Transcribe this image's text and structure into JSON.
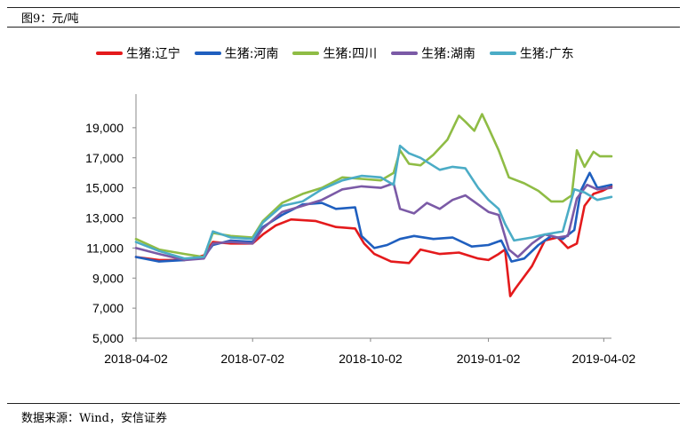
{
  "caption": "图9：元/吨",
  "source": "数据来源：Wind，安信证券",
  "chart_data": {
    "type": "line",
    "ylim": [
      5000,
      21000
    ],
    "yticks": [
      "5,000",
      "7,000",
      "9,000",
      "11,000",
      "13,000",
      "15,000",
      "17,000",
      "19,000"
    ],
    "ytick_values": [
      5000,
      7000,
      9000,
      11000,
      13000,
      15000,
      17000,
      19000
    ],
    "xticks": [
      "2018-04-02",
      "2018-07-02",
      "2018-10-02",
      "2019-01-02",
      "2019-04-02"
    ],
    "x_range": [
      "2018-04-02",
      "2019-04-08"
    ],
    "grid": false,
    "legend_position": "top",
    "series": [
      {
        "name": "生猪:辽宁",
        "color": "#e41a1c",
        "points": [
          [
            "2018-04-02",
            10400
          ],
          [
            "2018-04-20",
            10200
          ],
          [
            "2018-05-10",
            10200
          ],
          [
            "2018-05-25",
            10500
          ],
          [
            "2018-06-01",
            11400
          ],
          [
            "2018-06-15",
            11300
          ],
          [
            "2018-07-02",
            11300
          ],
          [
            "2018-07-10",
            11900
          ],
          [
            "2018-07-20",
            12500
          ],
          [
            "2018-08-01",
            12900
          ],
          [
            "2018-08-20",
            12800
          ],
          [
            "2018-09-05",
            12400
          ],
          [
            "2018-09-20",
            12300
          ],
          [
            "2018-09-27",
            11300
          ],
          [
            "2018-10-05",
            10600
          ],
          [
            "2018-10-18",
            10100
          ],
          [
            "2018-11-01",
            10000
          ],
          [
            "2018-11-10",
            10900
          ],
          [
            "2018-11-25",
            10600
          ],
          [
            "2018-12-10",
            10700
          ],
          [
            "2018-12-25",
            10300
          ],
          [
            "2019-01-02",
            10200
          ],
          [
            "2019-01-10",
            10600
          ],
          [
            "2019-01-15",
            10900
          ],
          [
            "2019-01-19",
            7800
          ],
          [
            "2019-01-23",
            8300
          ],
          [
            "2019-02-05",
            9800
          ],
          [
            "2019-02-15",
            11500
          ],
          [
            "2019-02-25",
            11700
          ],
          [
            "2019-03-05",
            11000
          ],
          [
            "2019-03-12",
            11300
          ],
          [
            "2019-03-18",
            13800
          ],
          [
            "2019-03-25",
            14600
          ],
          [
            "2019-04-01",
            14800
          ],
          [
            "2019-04-08",
            15100
          ]
        ]
      },
      {
        "name": "生猪:河南",
        "color": "#1f5fbf",
        "points": [
          [
            "2018-04-02",
            10400
          ],
          [
            "2018-04-20",
            10100
          ],
          [
            "2018-05-10",
            10200
          ],
          [
            "2018-05-25",
            10400
          ],
          [
            "2018-06-01",
            11200
          ],
          [
            "2018-06-15",
            11500
          ],
          [
            "2018-07-02",
            11400
          ],
          [
            "2018-07-10",
            12400
          ],
          [
            "2018-07-25",
            13200
          ],
          [
            "2018-08-10",
            13900
          ],
          [
            "2018-08-25",
            14000
          ],
          [
            "2018-09-05",
            13600
          ],
          [
            "2018-09-20",
            13700
          ],
          [
            "2018-09-25",
            11800
          ],
          [
            "2018-10-05",
            11000
          ],
          [
            "2018-10-15",
            11200
          ],
          [
            "2018-10-25",
            11600
          ],
          [
            "2018-11-05",
            11800
          ],
          [
            "2018-11-20",
            11600
          ],
          [
            "2018-12-05",
            11700
          ],
          [
            "2018-12-20",
            11100
          ],
          [
            "2019-01-02",
            11200
          ],
          [
            "2019-01-12",
            11500
          ],
          [
            "2019-01-20",
            10100
          ],
          [
            "2019-01-30",
            10300
          ],
          [
            "2019-02-10",
            11200
          ],
          [
            "2019-02-20",
            11800
          ],
          [
            "2019-03-01",
            11600
          ],
          [
            "2019-03-10",
            12200
          ],
          [
            "2019-03-15",
            14800
          ],
          [
            "2019-03-22",
            16000
          ],
          [
            "2019-03-28",
            15000
          ],
          [
            "2019-04-08",
            15200
          ]
        ]
      },
      {
        "name": "生猪:四川",
        "color": "#8fbc45",
        "points": [
          [
            "2018-04-02",
            11600
          ],
          [
            "2018-04-20",
            10900
          ],
          [
            "2018-05-10",
            10600
          ],
          [
            "2018-05-25",
            10400
          ],
          [
            "2018-06-01",
            12000
          ],
          [
            "2018-06-15",
            11800
          ],
          [
            "2018-07-02",
            11700
          ],
          [
            "2018-07-10",
            12800
          ],
          [
            "2018-07-25",
            14000
          ],
          [
            "2018-08-10",
            14600
          ],
          [
            "2018-08-25",
            15000
          ],
          [
            "2018-09-10",
            15700
          ],
          [
            "2018-09-25",
            15600
          ],
          [
            "2018-10-10",
            15500
          ],
          [
            "2018-10-20",
            16000
          ],
          [
            "2018-10-25",
            17500
          ],
          [
            "2018-11-01",
            16600
          ],
          [
            "2018-11-10",
            16500
          ],
          [
            "2018-11-20",
            17200
          ],
          [
            "2018-12-01",
            18200
          ],
          [
            "2018-12-10",
            19800
          ],
          [
            "2018-12-15",
            19400
          ],
          [
            "2018-12-22",
            18800
          ],
          [
            "2018-12-28",
            19900
          ],
          [
            "2019-01-02",
            19000
          ],
          [
            "2019-01-10",
            17500
          ],
          [
            "2019-01-18",
            15700
          ],
          [
            "2019-01-30",
            15300
          ],
          [
            "2019-02-10",
            14800
          ],
          [
            "2019-02-20",
            14100
          ],
          [
            "2019-03-01",
            14100
          ],
          [
            "2019-03-08",
            14500
          ],
          [
            "2019-03-12",
            17500
          ],
          [
            "2019-03-18",
            16400
          ],
          [
            "2019-03-25",
            17400
          ],
          [
            "2019-03-30",
            17100
          ],
          [
            "2019-04-08",
            17100
          ]
        ]
      },
      {
        "name": "生猪:湖南",
        "color": "#7b5aa6",
        "points": [
          [
            "2018-04-02",
            11000
          ],
          [
            "2018-04-20",
            10600
          ],
          [
            "2018-05-10",
            10200
          ],
          [
            "2018-05-25",
            10300
          ],
          [
            "2018-06-01",
            11300
          ],
          [
            "2018-06-15",
            11400
          ],
          [
            "2018-07-02",
            11300
          ],
          [
            "2018-07-10",
            12300
          ],
          [
            "2018-07-25",
            13400
          ],
          [
            "2018-08-10",
            13800
          ],
          [
            "2018-08-25",
            14200
          ],
          [
            "2018-09-10",
            14900
          ],
          [
            "2018-09-25",
            15100
          ],
          [
            "2018-10-10",
            15000
          ],
          [
            "2018-10-20",
            15300
          ],
          [
            "2018-10-25",
            13600
          ],
          [
            "2018-11-05",
            13300
          ],
          [
            "2018-11-15",
            14000
          ],
          [
            "2018-11-25",
            13600
          ],
          [
            "2018-12-05",
            14200
          ],
          [
            "2018-12-15",
            14500
          ],
          [
            "2019-01-02",
            13400
          ],
          [
            "2019-01-10",
            13200
          ],
          [
            "2019-01-18",
            10900
          ],
          [
            "2019-01-25",
            10400
          ],
          [
            "2019-02-05",
            11300
          ],
          [
            "2019-02-15",
            11900
          ],
          [
            "2019-02-25",
            11700
          ],
          [
            "2019-03-05",
            11800
          ],
          [
            "2019-03-12",
            14300
          ],
          [
            "2019-03-20",
            15200
          ],
          [
            "2019-03-28",
            14900
          ],
          [
            "2019-04-08",
            15000
          ]
        ]
      },
      {
        "name": "生猪:广东",
        "color": "#4bacc6",
        "points": [
          [
            "2018-04-02",
            11400
          ],
          [
            "2018-04-20",
            10800
          ],
          [
            "2018-05-10",
            10300
          ],
          [
            "2018-05-25",
            10400
          ],
          [
            "2018-06-01",
            12100
          ],
          [
            "2018-06-15",
            11700
          ],
          [
            "2018-07-02",
            11600
          ],
          [
            "2018-07-10",
            12700
          ],
          [
            "2018-07-25",
            13800
          ],
          [
            "2018-08-10",
            14100
          ],
          [
            "2018-08-25",
            14900
          ],
          [
            "2018-09-10",
            15500
          ],
          [
            "2018-09-25",
            15800
          ],
          [
            "2018-10-10",
            15700
          ],
          [
            "2018-10-20",
            15200
          ],
          [
            "2018-10-25",
            17800
          ],
          [
            "2018-11-01",
            17300
          ],
          [
            "2018-11-10",
            17000
          ],
          [
            "2018-11-25",
            16200
          ],
          [
            "2018-12-05",
            16400
          ],
          [
            "2018-12-15",
            16300
          ],
          [
            "2018-12-25",
            15000
          ],
          [
            "2019-01-02",
            14200
          ],
          [
            "2019-01-10",
            13600
          ],
          [
            "2019-01-15",
            12600
          ],
          [
            "2019-01-22",
            11500
          ],
          [
            "2019-02-05",
            11700
          ],
          [
            "2019-02-15",
            11900
          ],
          [
            "2019-03-01",
            12100
          ],
          [
            "2019-03-10",
            14900
          ],
          [
            "2019-03-18",
            14700
          ],
          [
            "2019-03-28",
            14200
          ],
          [
            "2019-04-08",
            14400
          ]
        ]
      }
    ]
  }
}
